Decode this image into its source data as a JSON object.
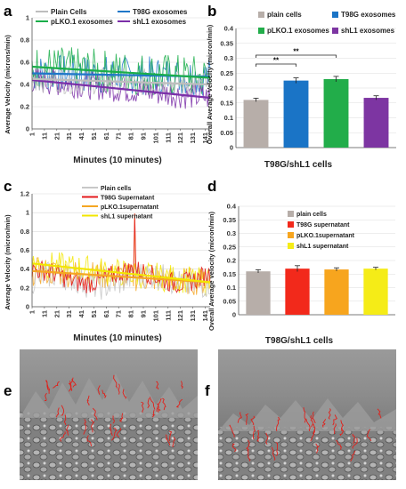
{
  "panel_labels": {
    "a": "a",
    "b": "b",
    "c": "c",
    "d": "d",
    "e": "e",
    "f": "f"
  },
  "chart_data": [
    {
      "id": "a",
      "type": "line",
      "ylabel": "Average Velocity (microns/min)",
      "xlabel": "Minutes (10 minutes)",
      "ylim": [
        0,
        1
      ],
      "yticks": [
        "0",
        "0.2",
        "0.4",
        "0.6",
        "0.8",
        "1"
      ],
      "x_tick_labels": [
        "1",
        "11",
        "21",
        "31",
        "41",
        "51",
        "61",
        "71",
        "81",
        "91",
        "101",
        "111",
        "121",
        "131",
        "141"
      ],
      "x_range": [
        1,
        145
      ],
      "legend": [
        {
          "name": "Plain Cells",
          "color": "#bdbdbd"
        },
        {
          "name": "T98G exosomes",
          "color": "#1f77c8"
        },
        {
          "name": "pLKO.1 exosomes",
          "color": "#1aae4a"
        },
        {
          "name": "shL1 exosomes",
          "color": "#7b2fa8"
        }
      ],
      "trend_lines": [
        {
          "series": "T98G exosomes",
          "color": "#1f77c8",
          "start": 0.5,
          "end": 0.47
        },
        {
          "series": "pLKO.1 exosomes",
          "color": "#1aae4a",
          "start": 0.56,
          "end": 0.46
        },
        {
          "series": "shL1 exosomes",
          "color": "#7b2fa8",
          "start": 0.44,
          "end": 0.28
        },
        {
          "series": "Plain Cells",
          "color": "#bdbdbd",
          "start": 0.45,
          "end": 0.4
        }
      ]
    },
    {
      "id": "b",
      "type": "bar",
      "ylabel": "Overall Average Velocity (micron/min)",
      "xlabel": "T98G/shL1 cells",
      "ylim": [
        0,
        0.4
      ],
      "yticks": [
        "0",
        "0.05",
        "0.1",
        "0.15",
        "0.2",
        "0.25",
        "0.3",
        "0.35",
        "0.4"
      ],
      "categories": [
        "plain cells",
        "T98G exosomes",
        "pLKO.1 exosomes",
        "shL1 exosomes"
      ],
      "values": [
        0.16,
        0.225,
        0.23,
        0.167
      ],
      "errors": [
        0.006,
        0.009,
        0.009,
        0.007
      ],
      "colors": [
        "#b7aea9",
        "#1a74c6",
        "#22ad4a",
        "#7d35a2"
      ],
      "significance": [
        {
          "from": 0,
          "to": 1,
          "label": "**"
        },
        {
          "from": 0,
          "to": 2,
          "label": "**"
        }
      ]
    },
    {
      "id": "c",
      "type": "line",
      "ylabel": "Average Velocity (micron/min)",
      "xlabel": "Minutes (10 minutes)",
      "ylim": [
        0,
        1.2
      ],
      "yticks": [
        "0",
        "0.2",
        "0.4",
        "0.6",
        "0.8",
        "1",
        "1.2"
      ],
      "x_tick_labels": [
        "1",
        "11",
        "21",
        "31",
        "41",
        "51",
        "61",
        "71",
        "81",
        "91",
        "101",
        "111",
        "121",
        "131",
        "141"
      ],
      "x_range": [
        1,
        145
      ],
      "legend": [
        {
          "name": "Plain cells",
          "color": "#c8c8c8"
        },
        {
          "name": "T98G Supernatant",
          "color": "#e31a1c"
        },
        {
          "name": "pLKO.1supernatant",
          "color": "#f5a623"
        },
        {
          "name": "shL1 supernatant",
          "color": "#f2e600"
        }
      ],
      "trend_lines": [
        {
          "series": "pLKO.1supernatant",
          "color": "#f5a623",
          "start": 0.38,
          "end": 0.26
        },
        {
          "series": "shL1 supernatant",
          "color": "#f2e600",
          "start": 0.46,
          "end": 0.26
        }
      ]
    },
    {
      "id": "d",
      "type": "bar",
      "ylabel": "Overall Average velocity (micron/min)",
      "xlabel": "T98G/shL1 cells",
      "ylim": [
        0,
        0.4
      ],
      "yticks": [
        "0",
        "0.05",
        "0.1",
        "0.15",
        "0.2",
        "0.25",
        "0.3",
        "0.35",
        "0.4"
      ],
      "categories": [
        "plain cells",
        "T98G supernatant",
        "pLKO.1supernatant",
        "shL1 supernatant"
      ],
      "values": [
        0.16,
        0.17,
        0.167,
        0.17
      ],
      "errors": [
        0.006,
        0.011,
        0.006,
        0.005
      ],
      "colors": [
        "#b7aea9",
        "#f2291b",
        "#f7a51e",
        "#f5ec17"
      ]
    }
  ]
}
